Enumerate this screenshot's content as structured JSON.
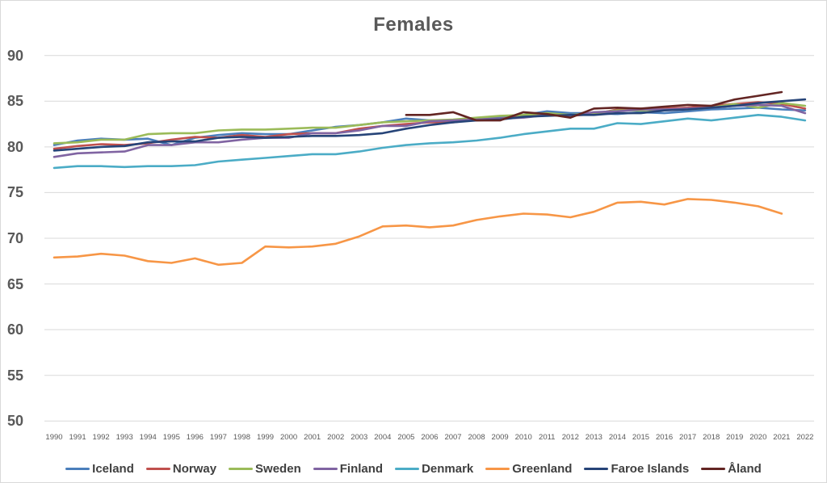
{
  "title": "Females",
  "colors": {
    "background": "#FFFFFF",
    "border": "#D9D9D9",
    "grid": "#D9D9D9",
    "title_text": "#595959",
    "axis_text": "#595959",
    "legend_text": "#404040"
  },
  "chart_data": {
    "type": "line",
    "title": "Females",
    "xlabel": "",
    "ylabel": "",
    "ylim": [
      50,
      90
    ],
    "y_ticks": [
      90,
      85,
      80,
      75,
      70,
      65,
      60,
      55,
      50
    ],
    "x_ticks": [
      1990,
      1991,
      1992,
      1993,
      1994,
      1995,
      1996,
      1997,
      1998,
      1999,
      2000,
      2001,
      2002,
      2003,
      2004,
      2005,
      2006,
      2007,
      2008,
      2009,
      2010,
      2011,
      2012,
      2013,
      2014,
      2015,
      2016,
      2017,
      2018,
      2019,
      2020,
      2021,
      2022
    ],
    "grid": "horizontal",
    "legend_position": "bottom",
    "series": [
      {
        "name": "Iceland",
        "color": "#4A7EBB",
        "start_year": 1990,
        "values": [
          80.2,
          80.7,
          80.9,
          80.8,
          80.9,
          80.2,
          81.0,
          81.3,
          81.5,
          81.4,
          81.4,
          81.8,
          82.2,
          82.4,
          82.7,
          83.1,
          82.9,
          82.9,
          83.0,
          83.3,
          83.5,
          83.9,
          83.7,
          83.7,
          83.6,
          83.8,
          83.7,
          83.9,
          84.1,
          84.2,
          84.3,
          84.1,
          84.0
        ]
      },
      {
        "name": "Norway",
        "color": "#C0504D",
        "start_year": 1990,
        "values": [
          79.8,
          80.1,
          80.3,
          80.2,
          80.4,
          80.8,
          81.1,
          81.0,
          81.3,
          81.1,
          81.4,
          81.5,
          81.5,
          82.0,
          82.3,
          82.5,
          82.7,
          82.7,
          83.0,
          83.1,
          83.3,
          83.5,
          83.4,
          83.6,
          84.1,
          84.2,
          84.2,
          84.3,
          84.5,
          84.7,
          84.9,
          84.7,
          84.2
        ]
      },
      {
        "name": "Sweden",
        "color": "#9BBB59",
        "start_year": 1990,
        "values": [
          80.4,
          80.5,
          80.8,
          80.8,
          81.4,
          81.5,
          81.5,
          81.8,
          81.9,
          81.9,
          82.0,
          82.1,
          82.1,
          82.4,
          82.7,
          82.8,
          82.9,
          83.0,
          83.2,
          83.4,
          83.5,
          83.7,
          83.5,
          83.7,
          84.0,
          84.0,
          84.1,
          84.1,
          84.3,
          84.7,
          84.3,
          84.8,
          84.5
        ]
      },
      {
        "name": "Finland",
        "color": "#8064A2",
        "start_year": 1990,
        "values": [
          78.9,
          79.3,
          79.4,
          79.5,
          80.2,
          80.2,
          80.5,
          80.5,
          80.8,
          81.0,
          81.0,
          81.5,
          81.5,
          81.8,
          82.3,
          82.3,
          82.8,
          82.9,
          83.0,
          83.1,
          83.2,
          83.5,
          83.4,
          83.8,
          83.9,
          84.1,
          84.1,
          84.2,
          84.3,
          84.5,
          84.6,
          84.5,
          83.7
        ]
      },
      {
        "name": "Denmark",
        "color": "#4BACC6",
        "start_year": 1990,
        "values": [
          77.7,
          77.9,
          77.9,
          77.8,
          77.9,
          77.9,
          78.0,
          78.4,
          78.6,
          78.8,
          79.0,
          79.2,
          79.2,
          79.5,
          79.9,
          80.2,
          80.4,
          80.5,
          80.7,
          81.0,
          81.4,
          81.7,
          82.0,
          82.0,
          82.6,
          82.5,
          82.8,
          83.1,
          82.9,
          83.2,
          83.5,
          83.3,
          82.9
        ]
      },
      {
        "name": "Greenland",
        "color": "#F79646",
        "start_year": 1990,
        "values": [
          67.9,
          68.0,
          68.3,
          68.1,
          67.5,
          67.3,
          67.8,
          67.1,
          67.3,
          69.1,
          69.0,
          69.1,
          69.4,
          70.2,
          71.3,
          71.4,
          71.2,
          71.4,
          72.0,
          72.4,
          72.7,
          72.6,
          72.3,
          72.9,
          73.9,
          74.0,
          73.7,
          74.3,
          74.2,
          73.9,
          73.5,
          72.7
        ]
      },
      {
        "name": "Faroe Islands",
        "color": "#264478",
        "start_year": 1990,
        "values": [
          79.6,
          79.8,
          80.0,
          80.1,
          80.5,
          80.6,
          80.6,
          81.0,
          81.1,
          81.0,
          81.1,
          81.2,
          81.2,
          81.3,
          81.5,
          82.0,
          82.4,
          82.7,
          82.9,
          83.0,
          83.3,
          83.4,
          83.5,
          83.5,
          83.7,
          83.7,
          84.0,
          84.1,
          84.3,
          84.5,
          84.8,
          85.0,
          85.2
        ]
      },
      {
        "name": "Åland",
        "color": "#632523",
        "start_year": 2005,
        "values": [
          83.5,
          83.5,
          83.8,
          82.9,
          82.9,
          83.8,
          83.6,
          83.2,
          84.2,
          84.3,
          84.2,
          84.4,
          84.6,
          84.5,
          85.2,
          85.6,
          86.0
        ]
      }
    ]
  }
}
